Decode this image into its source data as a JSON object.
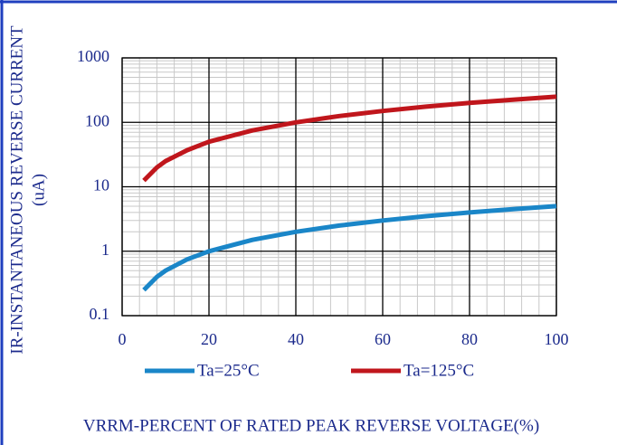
{
  "chart_data": {
    "type": "line",
    "ylabel": [
      "IR-INSTANTANEOUS REVERSE CURRENT",
      "(uA)"
    ],
    "xlabel": "VRRM-PERCENT OF RATED PEAK REVERSE VOLTAGE(%)",
    "x": [
      5,
      8,
      10,
      15,
      20,
      30,
      40,
      50,
      60,
      70,
      80,
      90,
      100
    ],
    "series": [
      {
        "name": "Ta=25°C",
        "color": "#1a86c8",
        "values": [
          0.25,
          0.4,
          0.5,
          0.75,
          1,
          1.5,
          2,
          2.5,
          3,
          3.5,
          4,
          4.5,
          5
        ]
      },
      {
        "name": "Ta=125°C",
        "color": "#c0161c",
        "values": [
          12.5,
          20,
          25,
          37,
          50,
          75,
          100,
          125,
          150,
          175,
          200,
          225,
          250
        ]
      }
    ],
    "xlim": [
      0,
      100
    ],
    "xticks": [
      0,
      20,
      40,
      60,
      80,
      100
    ],
    "ylim": [
      0.1,
      1000
    ],
    "yticks": [
      0.1,
      1,
      10,
      100,
      1000
    ],
    "log_y": true,
    "grid": true,
    "legend": "bottom"
  }
}
